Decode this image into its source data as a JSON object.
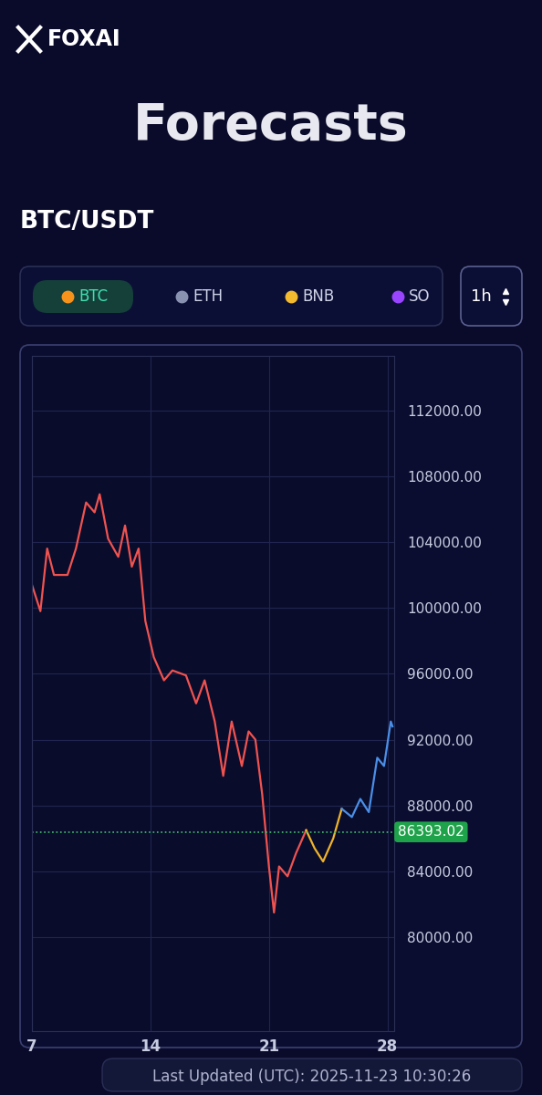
{
  "header": {
    "brand": "FOXAI",
    "title": "Forecasts",
    "pair": "BTC/USDT",
    "tabs": [
      "BTC",
      "ETH",
      "BNB",
      "SO"
    ],
    "selected_tab": "BTC",
    "interval": "1h"
  },
  "chart_data": {
    "type": "line",
    "x": [
      7.0,
      7.5,
      7.9,
      8.3,
      9.1,
      9.6,
      10.2,
      10.7,
      11.0,
      11.5,
      12.1,
      12.5,
      12.9,
      13.3,
      13.7,
      14.2,
      14.8,
      15.3,
      16.1,
      16.7,
      17.2,
      17.8,
      18.3,
      18.8,
      19.4,
      19.8,
      20.2,
      20.6,
      21.0,
      21.3,
      21.6,
      22.1,
      22.6,
      23.2,
      23.7,
      24.2,
      24.8,
      25.3,
      25.9,
      26.4,
      26.9,
      27.4,
      27.8,
      28.2,
      28.3
    ],
    "series": [
      {
        "color": "#ef5350",
        "values": [
          101400,
          99800,
          103600,
          102000,
          102000,
          103600,
          106400,
          105800,
          106900,
          104200,
          103100,
          105000,
          102500,
          103600,
          99200,
          97000,
          95600,
          96200,
          95900,
          94200,
          95600,
          93100,
          89800,
          93100,
          90400,
          92500,
          92000,
          88700,
          84300,
          81500,
          84300,
          83700,
          85100,
          86500,
          null,
          null,
          null,
          null,
          null,
          null,
          null,
          null,
          null,
          null,
          null
        ]
      },
      {
        "color": "#f0b429",
        "values": [
          null,
          null,
          null,
          null,
          null,
          null,
          null,
          null,
          null,
          null,
          null,
          null,
          null,
          null,
          null,
          null,
          null,
          null,
          null,
          null,
          null,
          null,
          null,
          null,
          null,
          null,
          null,
          null,
          null,
          null,
          null,
          null,
          null,
          86500,
          85400,
          84600,
          86000,
          87800,
          null,
          null,
          null,
          null,
          null,
          null,
          null
        ]
      },
      {
        "color": "#4a8fe7",
        "values": [
          null,
          null,
          null,
          null,
          null,
          null,
          null,
          null,
          null,
          null,
          null,
          null,
          null,
          null,
          null,
          null,
          null,
          null,
          null,
          null,
          null,
          null,
          null,
          null,
          null,
          null,
          null,
          null,
          null,
          null,
          null,
          null,
          null,
          null,
          null,
          null,
          null,
          87800,
          87300,
          88400,
          87600,
          90900,
          90400,
          93100,
          92800
        ]
      }
    ],
    "xlim": [
      7,
      28.4
    ],
    "xticks": [
      7,
      14,
      21,
      28
    ],
    "ylim": [
      74300,
      115300
    ],
    "yticks": [
      {
        "value": 80000,
        "label": "80000.00"
      },
      {
        "value": 84000,
        "label": "84000.00"
      },
      {
        "value": 88000,
        "label": "88000.00"
      },
      {
        "value": 92000,
        "label": "92000.00"
      },
      {
        "value": 96000,
        "label": "96000.00"
      },
      {
        "value": 100000,
        "label": "100000.00"
      },
      {
        "value": 104000,
        "label": "104000.00"
      },
      {
        "value": 108000,
        "label": "108000.00"
      },
      {
        "value": 112000,
        "label": "112000.00"
      }
    ],
    "grid": true,
    "current_price": 86393.02
  },
  "footer": {
    "text": "Last Updated (UTC): 2025-11-23 10:30:26"
  }
}
